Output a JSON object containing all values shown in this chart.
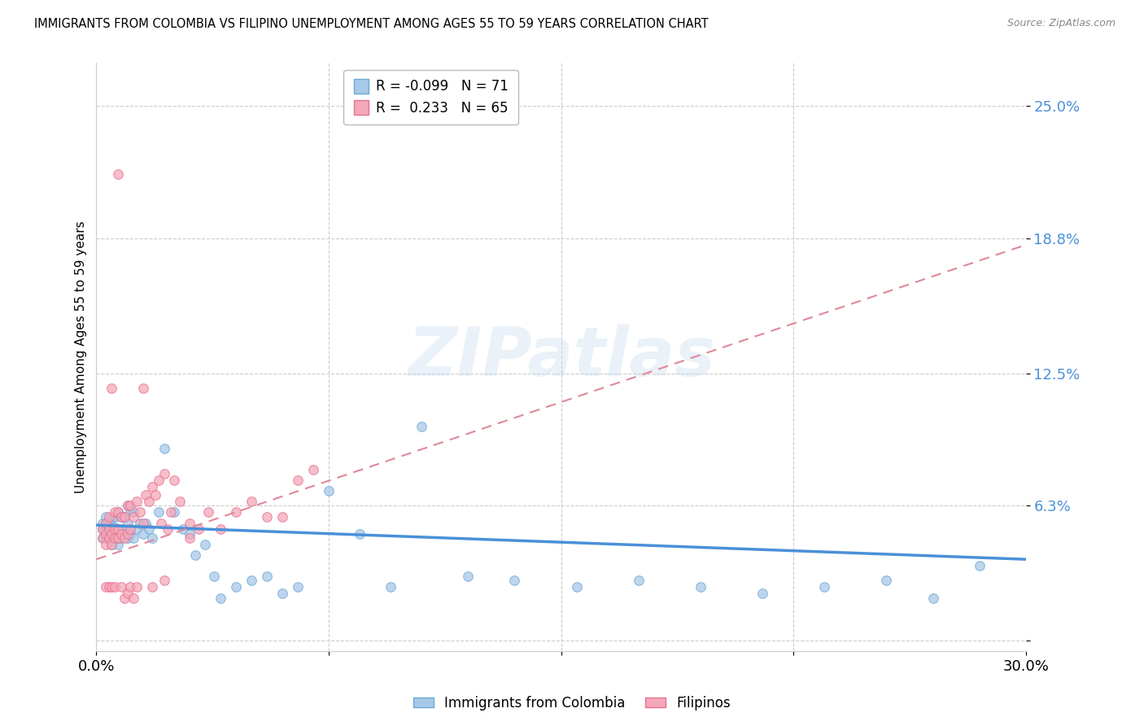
{
  "title": "IMMIGRANTS FROM COLOMBIA VS FILIPINO UNEMPLOYMENT AMONG AGES 55 TO 59 YEARS CORRELATION CHART",
  "source": "Source: ZipAtlas.com",
  "ylabel": "Unemployment Among Ages 55 to 59 years",
  "xlim": [
    0.0,
    0.3
  ],
  "ylim": [
    -0.005,
    0.27
  ],
  "ytick_vals": [
    0.0,
    0.063,
    0.125,
    0.188,
    0.25
  ],
  "ytick_labels": [
    "",
    "6.3%",
    "12.5%",
    "18.8%",
    "25.0%"
  ],
  "xtick_vals": [
    0.0,
    0.075,
    0.15,
    0.225,
    0.3
  ],
  "xtick_labels": [
    "0.0%",
    "",
    "",
    "",
    "30.0%"
  ],
  "colombia_color": "#a8c8e8",
  "colombia_edge": "#6aaad4",
  "filipinos_color": "#f4a8b8",
  "filipinos_edge": "#e87090",
  "colombia_line_color": "#4a90d9",
  "filipinos_line_color": "#e08898",
  "colombia_R": -0.099,
  "colombia_N": 71,
  "filipinos_R": 0.233,
  "filipinos_N": 65,
  "watermark_text": "ZIPatlas",
  "colombia_trend_x": [
    0.0,
    0.3
  ],
  "colombia_trend_y": [
    0.054,
    0.038
  ],
  "filipinos_trend_x": [
    0.0,
    0.3
  ],
  "filipinos_trend_y": [
    0.038,
    0.185
  ],
  "colombia_scatter_x": [
    0.002,
    0.002,
    0.002,
    0.003,
    0.003,
    0.003,
    0.003,
    0.003,
    0.004,
    0.004,
    0.004,
    0.004,
    0.005,
    0.005,
    0.005,
    0.005,
    0.005,
    0.006,
    0.006,
    0.006,
    0.006,
    0.007,
    0.007,
    0.007,
    0.007,
    0.008,
    0.008,
    0.008,
    0.009,
    0.009,
    0.01,
    0.01,
    0.01,
    0.011,
    0.011,
    0.012,
    0.012,
    0.013,
    0.014,
    0.015,
    0.016,
    0.017,
    0.018,
    0.02,
    0.022,
    0.025,
    0.028,
    0.03,
    0.032,
    0.035,
    0.038,
    0.04,
    0.045,
    0.05,
    0.055,
    0.06,
    0.065,
    0.075,
    0.085,
    0.095,
    0.105,
    0.12,
    0.135,
    0.155,
    0.175,
    0.195,
    0.215,
    0.235,
    0.255,
    0.27,
    0.285
  ],
  "colombia_scatter_y": [
    0.048,
    0.052,
    0.055,
    0.048,
    0.05,
    0.052,
    0.055,
    0.058,
    0.048,
    0.05,
    0.052,
    0.055,
    0.045,
    0.048,
    0.05,
    0.053,
    0.057,
    0.048,
    0.05,
    0.053,
    0.058,
    0.045,
    0.048,
    0.052,
    0.06,
    0.048,
    0.052,
    0.058,
    0.05,
    0.058,
    0.048,
    0.055,
    0.063,
    0.05,
    0.06,
    0.048,
    0.06,
    0.052,
    0.055,
    0.05,
    0.055,
    0.052,
    0.048,
    0.06,
    0.09,
    0.06,
    0.052,
    0.05,
    0.04,
    0.045,
    0.03,
    0.02,
    0.025,
    0.028,
    0.03,
    0.022,
    0.025,
    0.07,
    0.05,
    0.025,
    0.1,
    0.03,
    0.028,
    0.025,
    0.028,
    0.025,
    0.022,
    0.025,
    0.028,
    0.02,
    0.035
  ],
  "filipinos_scatter_x": [
    0.002,
    0.002,
    0.003,
    0.003,
    0.003,
    0.004,
    0.004,
    0.004,
    0.005,
    0.005,
    0.005,
    0.006,
    0.006,
    0.006,
    0.007,
    0.007,
    0.007,
    0.008,
    0.008,
    0.009,
    0.009,
    0.01,
    0.01,
    0.011,
    0.011,
    0.012,
    0.013,
    0.014,
    0.015,
    0.016,
    0.017,
    0.018,
    0.019,
    0.02,
    0.021,
    0.022,
    0.023,
    0.024,
    0.025,
    0.027,
    0.03,
    0.033,
    0.036,
    0.04,
    0.045,
    0.05,
    0.055,
    0.06,
    0.065,
    0.07,
    0.003,
    0.004,
    0.005,
    0.006,
    0.007,
    0.008,
    0.009,
    0.01,
    0.011,
    0.012,
    0.013,
    0.015,
    0.018,
    0.022,
    0.03
  ],
  "filipinos_scatter_y": [
    0.048,
    0.052,
    0.045,
    0.05,
    0.055,
    0.048,
    0.052,
    0.058,
    0.045,
    0.05,
    0.118,
    0.048,
    0.052,
    0.06,
    0.048,
    0.052,
    0.06,
    0.05,
    0.058,
    0.048,
    0.058,
    0.05,
    0.063,
    0.052,
    0.063,
    0.058,
    0.065,
    0.06,
    0.055,
    0.068,
    0.065,
    0.072,
    0.068,
    0.075,
    0.055,
    0.078,
    0.052,
    0.06,
    0.075,
    0.065,
    0.055,
    0.052,
    0.06,
    0.052,
    0.06,
    0.065,
    0.058,
    0.058,
    0.075,
    0.08,
    0.025,
    0.025,
    0.025,
    0.025,
    0.218,
    0.025,
    0.02,
    0.022,
    0.025,
    0.02,
    0.025,
    0.118,
    0.025,
    0.028,
    0.048
  ]
}
